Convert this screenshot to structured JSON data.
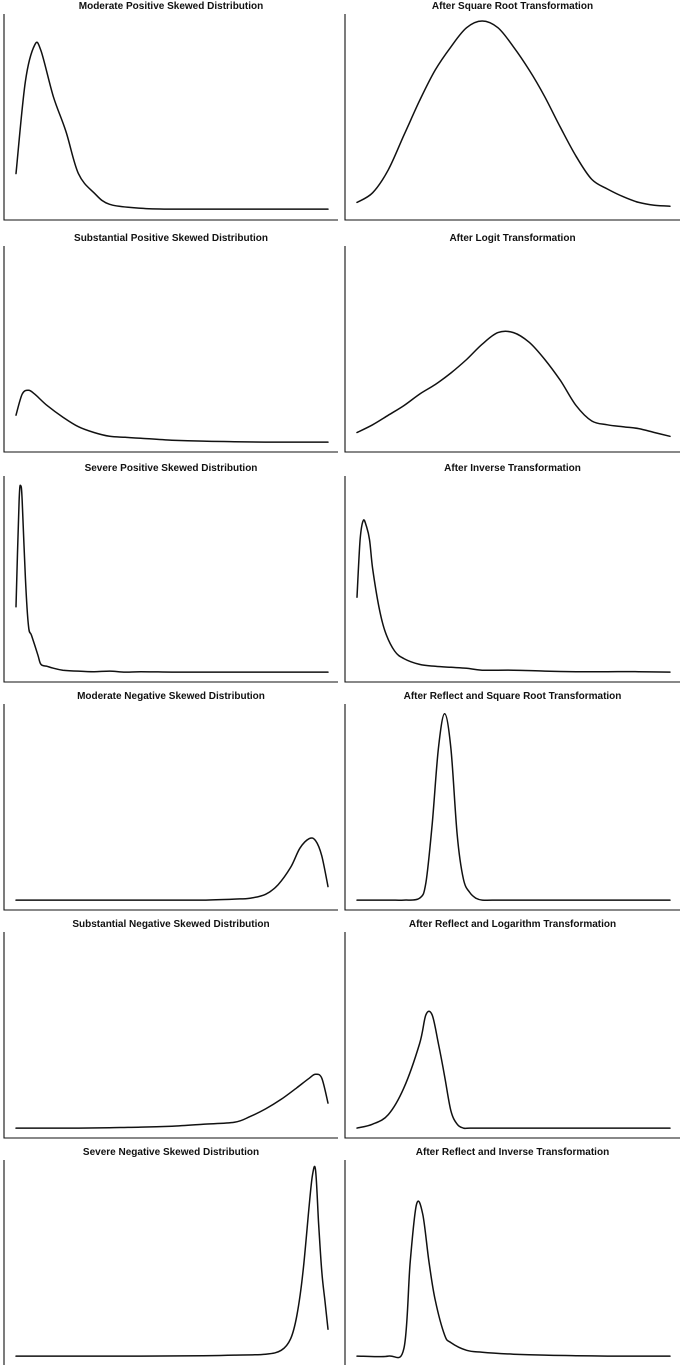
{
  "chart_data": [
    {
      "type": "line",
      "title": "Moderate Positive Skewed Distribution",
      "xlabel": "",
      "ylabel": "",
      "grid": false,
      "x": [
        0.0,
        0.03,
        0.06,
        0.08,
        0.12,
        0.16,
        0.2,
        0.25,
        0.3,
        0.4,
        0.5,
        0.6,
        0.7,
        0.8,
        0.9,
        1.0
      ],
      "y": [
        0.2,
        0.68,
        0.87,
        0.84,
        0.6,
        0.42,
        0.2,
        0.1,
        0.04,
        0.02,
        0.015,
        0.015,
        0.015,
        0.015,
        0.015,
        0.015
      ]
    },
    {
      "type": "line",
      "title": "After Square Root Transformation",
      "xlabel": "",
      "ylabel": "",
      "grid": false,
      "x": [
        0.0,
        0.05,
        0.1,
        0.15,
        0.2,
        0.25,
        0.3,
        0.35,
        0.4,
        0.45,
        0.5,
        0.55,
        0.6,
        0.65,
        0.7,
        0.75,
        0.8,
        0.85,
        0.9,
        0.95,
        1.0
      ],
      "y": [
        0.05,
        0.1,
        0.22,
        0.4,
        0.58,
        0.74,
        0.86,
        0.96,
        0.995,
        0.96,
        0.86,
        0.74,
        0.6,
        0.44,
        0.29,
        0.17,
        0.12,
        0.08,
        0.05,
        0.035,
        0.03
      ]
    },
    {
      "type": "line",
      "title": "Substantial Positive Skewed Distribution",
      "xlabel": "",
      "ylabel": "",
      "grid": false,
      "x": [
        0.0,
        0.02,
        0.04,
        0.06,
        0.1,
        0.15,
        0.2,
        0.25,
        0.3,
        0.35,
        0.4,
        0.5,
        0.6,
        0.7,
        0.8,
        0.9,
        1.0
      ],
      "y": [
        0.15,
        0.26,
        0.28,
        0.26,
        0.2,
        0.14,
        0.09,
        0.06,
        0.04,
        0.035,
        0.03,
        0.02,
        0.015,
        0.012,
        0.01,
        0.01,
        0.01
      ]
    },
    {
      "type": "line",
      "title": "After Logit Transformation",
      "xlabel": "",
      "ylabel": "",
      "grid": false,
      "x": [
        0.0,
        0.05,
        0.1,
        0.15,
        0.2,
        0.25,
        0.3,
        0.35,
        0.4,
        0.45,
        0.5,
        0.55,
        0.6,
        0.65,
        0.7,
        0.75,
        0.8,
        0.85,
        0.9,
        0.95,
        1.0
      ],
      "y": [
        0.06,
        0.1,
        0.15,
        0.2,
        0.26,
        0.31,
        0.37,
        0.44,
        0.52,
        0.58,
        0.58,
        0.53,
        0.44,
        0.33,
        0.2,
        0.12,
        0.1,
        0.09,
        0.08,
        0.06,
        0.04
      ]
    },
    {
      "type": "line",
      "title": "Severe Positive Skewed Distribution",
      "xlabel": "",
      "ylabel": "",
      "grid": false,
      "x": [
        0.0,
        0.01,
        0.015,
        0.02,
        0.03,
        0.04,
        0.05,
        0.07,
        0.08,
        0.1,
        0.12,
        0.15,
        0.2,
        0.25,
        0.3,
        0.35,
        0.4,
        0.5,
        0.6,
        0.7,
        0.8,
        0.9,
        1.0
      ],
      "y": [
        0.35,
        0.9,
        0.98,
        0.9,
        0.5,
        0.25,
        0.2,
        0.1,
        0.05,
        0.04,
        0.03,
        0.02,
        0.015,
        0.012,
        0.015,
        0.01,
        0.012,
        0.01,
        0.01,
        0.01,
        0.01,
        0.01,
        0.01
      ]
    },
    {
      "type": "line",
      "title": "After Inverse Transformation",
      "xlabel": "",
      "ylabel": "",
      "grid": false,
      "x": [
        0.0,
        0.01,
        0.02,
        0.03,
        0.04,
        0.05,
        0.07,
        0.09,
        0.12,
        0.15,
        0.2,
        0.25,
        0.3,
        0.35,
        0.4,
        0.5,
        0.6,
        0.7,
        0.8,
        0.9,
        1.0
      ],
      "y": [
        0.4,
        0.7,
        0.8,
        0.77,
        0.7,
        0.55,
        0.35,
        0.22,
        0.12,
        0.08,
        0.05,
        0.04,
        0.035,
        0.03,
        0.02,
        0.02,
        0.015,
        0.012,
        0.012,
        0.012,
        0.01
      ]
    },
    {
      "type": "line",
      "title": "Moderate Negative Skewed Distribution",
      "xlabel": "",
      "ylabel": "",
      "grid": false,
      "x": [
        0.0,
        0.1,
        0.2,
        0.3,
        0.4,
        0.5,
        0.6,
        0.7,
        0.75,
        0.8,
        0.84,
        0.88,
        0.91,
        0.94,
        0.96,
        0.98,
        1.0
      ],
      "y": [
        0.01,
        0.01,
        0.01,
        0.01,
        0.01,
        0.01,
        0.01,
        0.015,
        0.02,
        0.04,
        0.09,
        0.18,
        0.28,
        0.33,
        0.32,
        0.24,
        0.08
      ]
    },
    {
      "type": "line",
      "title": "After Reflect and Square Root Transformation",
      "xlabel": "",
      "ylabel": "",
      "grid": false,
      "x": [
        0.0,
        0.1,
        0.15,
        0.2,
        0.22,
        0.24,
        0.26,
        0.28,
        0.3,
        0.32,
        0.34,
        0.36,
        0.38,
        0.4,
        0.45,
        0.5,
        0.6,
        0.7,
        0.8,
        0.9,
        1.0
      ],
      "y": [
        0.01,
        0.01,
        0.01,
        0.02,
        0.1,
        0.4,
        0.8,
        0.98,
        0.8,
        0.35,
        0.12,
        0.05,
        0.02,
        0.01,
        0.01,
        0.01,
        0.01,
        0.01,
        0.01,
        0.01,
        0.01
      ]
    },
    {
      "type": "line",
      "title": "Substantial Negative Skewed Distribution",
      "xlabel": "",
      "ylabel": "",
      "grid": false,
      "x": [
        0.0,
        0.1,
        0.2,
        0.3,
        0.4,
        0.5,
        0.6,
        0.7,
        0.75,
        0.8,
        0.85,
        0.9,
        0.94,
        0.96,
        0.98,
        1.0
      ],
      "y": [
        0.01,
        0.01,
        0.01,
        0.012,
        0.015,
        0.02,
        0.03,
        0.04,
        0.07,
        0.11,
        0.16,
        0.22,
        0.27,
        0.29,
        0.27,
        0.14
      ]
    },
    {
      "type": "line",
      "title": "After Reflect and Logarithm Transformation",
      "xlabel": "",
      "ylabel": "",
      "grid": false,
      "x": [
        0.0,
        0.05,
        0.1,
        0.15,
        0.2,
        0.22,
        0.24,
        0.26,
        0.28,
        0.3,
        0.32,
        0.34,
        0.36,
        0.4,
        0.5,
        0.6,
        0.7,
        0.8,
        0.9,
        1.0
      ],
      "y": [
        0.01,
        0.03,
        0.08,
        0.22,
        0.45,
        0.6,
        0.6,
        0.45,
        0.28,
        0.1,
        0.03,
        0.01,
        0.01,
        0.01,
        0.01,
        0.01,
        0.01,
        0.01,
        0.01,
        0.01
      ]
    },
    {
      "type": "line",
      "title": "Severe Negative Skewed Distribution",
      "xlabel": "",
      "ylabel": "",
      "grid": false,
      "x": [
        0.0,
        0.2,
        0.4,
        0.6,
        0.7,
        0.8,
        0.85,
        0.88,
        0.9,
        0.92,
        0.94,
        0.95,
        0.96,
        0.97,
        0.98,
        0.99,
        1.0
      ],
      "y": [
        0.01,
        0.01,
        0.01,
        0.012,
        0.015,
        0.02,
        0.04,
        0.1,
        0.22,
        0.45,
        0.8,
        0.95,
        0.98,
        0.7,
        0.45,
        0.3,
        0.15
      ]
    },
    {
      "type": "line",
      "title": "After Reflect and Inverse Transformation",
      "xlabel": "",
      "ylabel": "",
      "grid": false,
      "x": [
        0.0,
        0.1,
        0.15,
        0.17,
        0.19,
        0.21,
        0.23,
        0.25,
        0.28,
        0.3,
        0.35,
        0.4,
        0.5,
        0.6,
        0.7,
        0.8,
        0.9,
        1.0
      ],
      "y": [
        0.01,
        0.01,
        0.05,
        0.5,
        0.8,
        0.75,
        0.5,
        0.3,
        0.12,
        0.08,
        0.04,
        0.03,
        0.02,
        0.015,
        0.012,
        0.01,
        0.01,
        0.01
      ]
    }
  ]
}
